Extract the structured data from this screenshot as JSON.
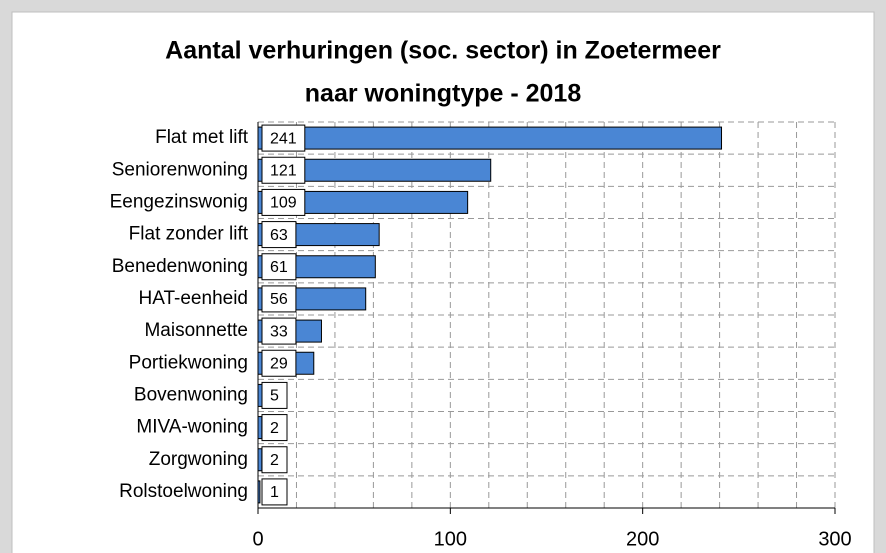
{
  "chart_data": {
    "type": "barh",
    "title": [
      "Aantal verhuringen (soc. sector) in Zoetermeer",
      "naar woningtype - 2018"
    ],
    "categories": [
      "Flat met lift",
      "Seniorenwoning",
      "Eengezinswonig",
      "Flat zonder lift",
      "Benedenwoning",
      "HAT-eenheid",
      "Maisonnette",
      "Portiekwoning",
      "Bovenwoning",
      "MIVA-woning",
      "Zorgwoning",
      "Rolstoelwoning"
    ],
    "values": [
      241,
      121,
      109,
      63,
      61,
      56,
      33,
      29,
      5,
      2,
      2,
      1
    ],
    "color": "#4a86d4",
    "xlim": [
      0,
      300
    ],
    "xticks": [
      0,
      100,
      200,
      300
    ],
    "xgridticks": [
      20,
      40,
      60,
      80,
      100,
      120,
      140,
      160,
      180,
      200,
      220,
      240,
      260,
      280,
      300
    ],
    "grid": true
  }
}
